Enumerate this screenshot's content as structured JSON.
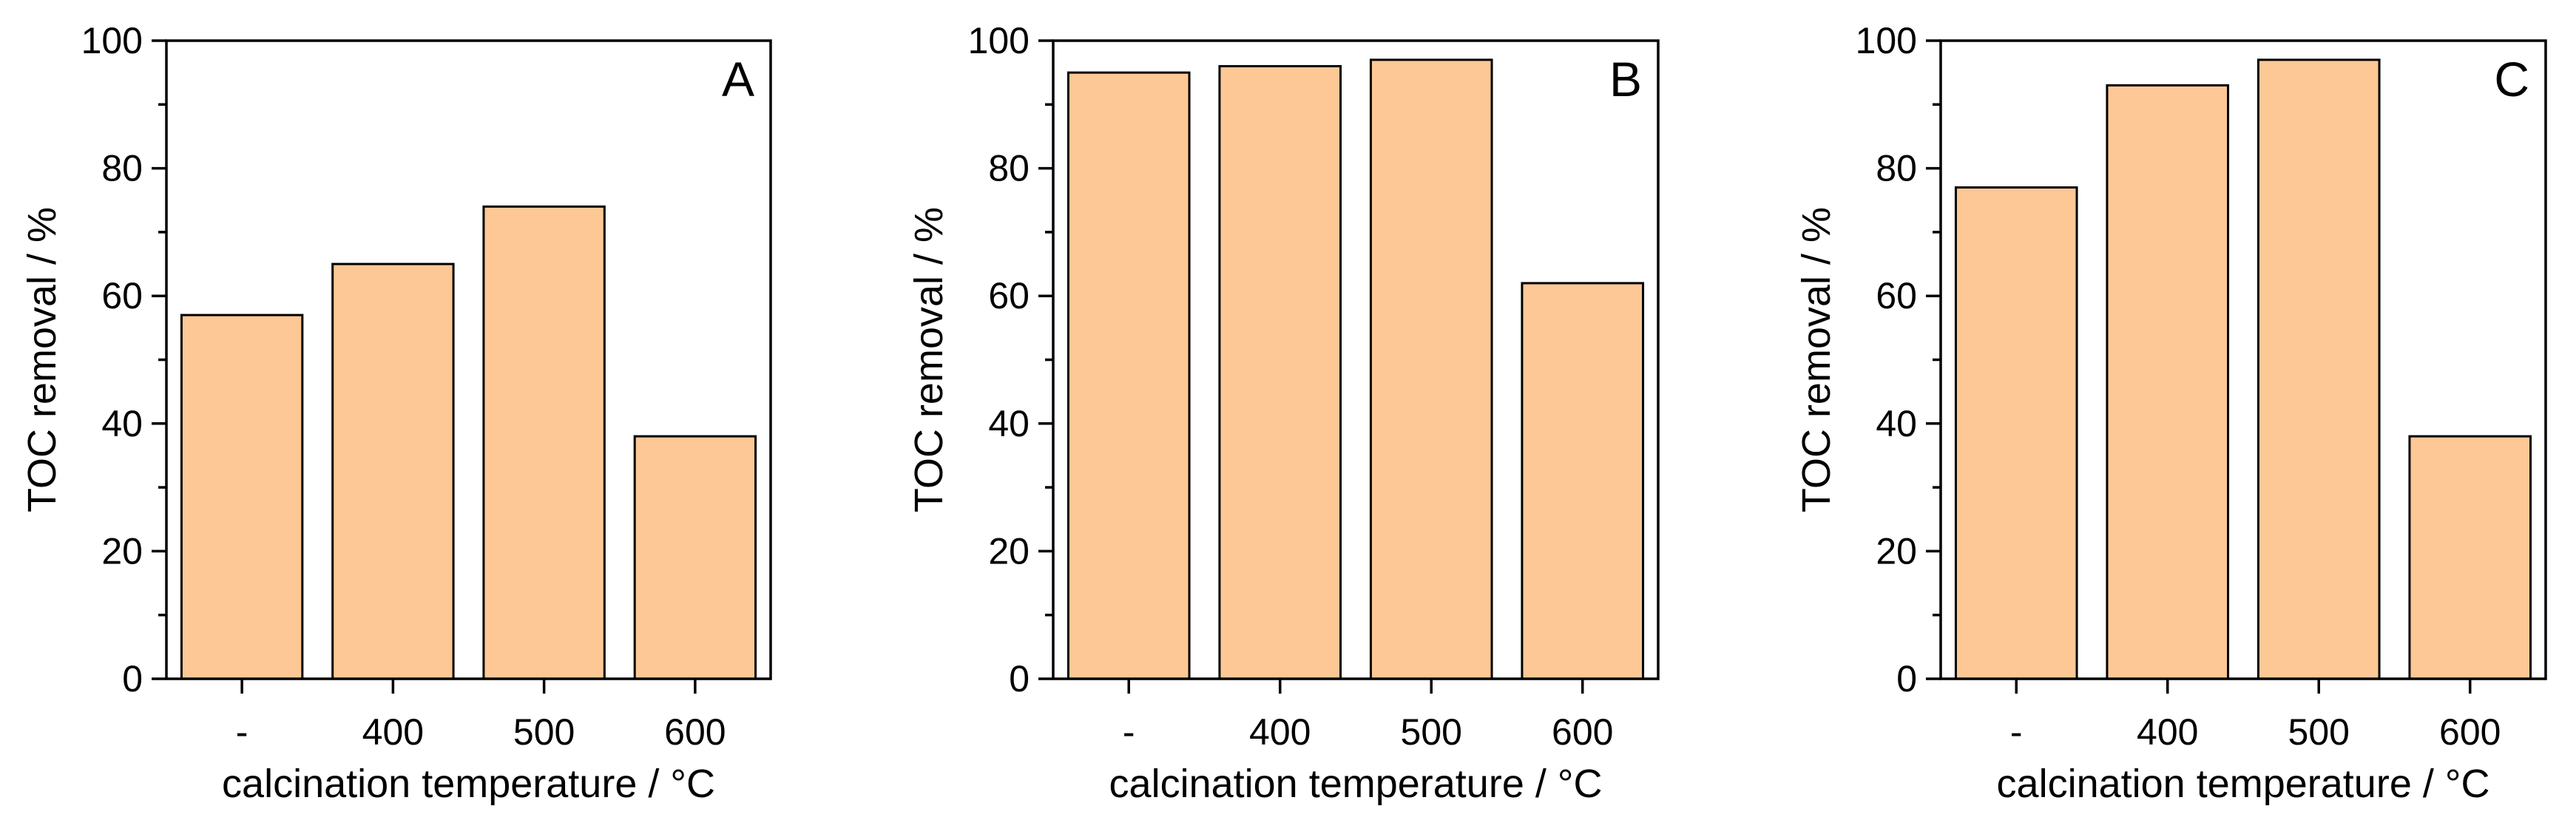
{
  "colors": {
    "bar_fill": "#FDC895",
    "bar_stroke": "#000000",
    "axis": "#000000"
  },
  "chart_data": [
    {
      "type": "bar",
      "panel": "A",
      "categories": [
        "-",
        "400",
        "500",
        "600"
      ],
      "values": [
        57,
        65,
        74,
        38
      ],
      "xlabel": "calcination temperature / °C",
      "ylabel": "TOC removal / %",
      "ylim": [
        0,
        100
      ],
      "yticks": [
        "0",
        "20",
        "40",
        "60",
        "80",
        "100"
      ],
      "grid": false
    },
    {
      "type": "bar",
      "panel": "B",
      "categories": [
        "-",
        "400",
        "500",
        "600"
      ],
      "values": [
        95,
        96,
        97,
        62
      ],
      "xlabel": "calcination temperature / °C",
      "ylabel": "TOC removal / %",
      "ylim": [
        0,
        100
      ],
      "yticks": [
        "0",
        "20",
        "40",
        "60",
        "80",
        "100"
      ],
      "grid": false
    },
    {
      "type": "bar",
      "panel": "C",
      "categories": [
        "-",
        "400",
        "500",
        "600"
      ],
      "values": [
        77,
        93,
        97,
        38
      ],
      "xlabel": "calcination temperature / °C",
      "ylabel": "TOC removal / %",
      "ylim": [
        0,
        100
      ],
      "yticks": [
        "0",
        "20",
        "40",
        "60",
        "80",
        "100"
      ],
      "grid": false
    }
  ]
}
